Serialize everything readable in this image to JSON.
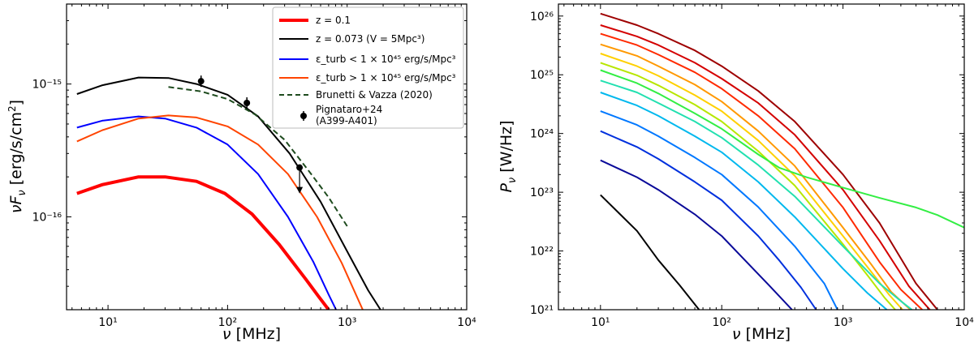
{
  "chart_data": [
    {
      "type": "line",
      "xlabel": "ν [MHz]",
      "ylabel": "νF_ν [erg/s/cm²]",
      "xscale": "log",
      "yscale": "log",
      "xlim": [
        4.5,
        10000
      ],
      "ylim": [
        2e-17,
        4e-15
      ],
      "x_ticks": [
        10,
        100,
        1000,
        10000
      ],
      "x_tick_labels": [
        "10¹",
        "10²",
        "10³",
        "10⁴"
      ],
      "y_ticks": [
        1e-16,
        1e-15
      ],
      "y_tick_labels": [
        "10⁻¹⁶",
        "10⁻¹⁵"
      ],
      "grid": false,
      "legend_position": "top-right",
      "series": [
        {
          "name": "z = 0.1",
          "color": "#ff0000",
          "width": 4,
          "dash": "solid",
          "x": [
            5.5,
            9,
            18,
            30,
            55,
            95,
            160,
            270,
            450,
            580,
            700
          ],
          "y": [
            1.5e-16,
            1.75e-16,
            2e-16,
            2e-16,
            1.85e-16,
            1.5e-16,
            1.05e-16,
            6.2e-17,
            3.4e-17,
            2.5e-17,
            2e-17
          ]
        },
        {
          "name": "z = 0.073 (V = 5Mpc³)",
          "color": "#000000",
          "width": 2,
          "dash": "solid",
          "x": [
            5.5,
            9,
            18,
            32,
            55,
            100,
            180,
            330,
            600,
            1000,
            1500,
            1900
          ],
          "y": [
            8.4e-16,
            9.8e-16,
            1.12e-15,
            1.11e-15,
            1e-15,
            8.3e-16,
            5.7e-16,
            3e-16,
            1.3e-16,
            5.5e-17,
            2.8e-17,
            2e-17
          ]
        },
        {
          "name": "ε_turb < 1 × 10⁴⁵ erg/s/Mpc³",
          "color": "#0000ff",
          "width": 2,
          "dash": "solid",
          "x": [
            5.5,
            9,
            18,
            30,
            55,
            100,
            180,
            320,
            520,
            700,
            830
          ],
          "y": [
            4.7e-16,
            5.3e-16,
            5.7e-16,
            5.5e-16,
            4.7e-16,
            3.5e-16,
            2.1e-16,
            1e-16,
            4.6e-17,
            2.6e-17,
            1.9e-17
          ]
        },
        {
          "name": "ε_turb > 1 × 10⁴⁵ erg/s/Mpc³",
          "color": "#ff4400",
          "width": 2,
          "dash": "solid",
          "x": [
            5.5,
            9,
            18,
            32,
            55,
            100,
            180,
            320,
            560,
            900,
            1350
          ],
          "y": [
            3.7e-16,
            4.5e-16,
            5.5e-16,
            5.8e-16,
            5.6e-16,
            4.8e-16,
            3.5e-16,
            2.1e-16,
            1e-16,
            4.5e-17,
            2e-17
          ]
        },
        {
          "name": "Brunetti & Vazza (2020)",
          "color": "#1e4b1e",
          "width": 2,
          "dash": "dashed",
          "x": [
            32,
            60,
            100,
            170,
            300,
            500,
            700,
            1000
          ],
          "y": [
            9.5e-16,
            8.8e-16,
            7.7e-16,
            5.9e-16,
            3.8e-16,
            2.1e-16,
            1.4e-16,
            8.5e-17
          ]
        }
      ],
      "points": {
        "name": "Pignataro+24 (A399-A401)",
        "color": "#000000",
        "x": [
          60,
          145,
          400
        ],
        "y": [
          1.05e-15,
          7.2e-16,
          2.35e-16
        ],
        "upper_limit": [
          false,
          false,
          true
        ]
      }
    },
    {
      "type": "line",
      "xlabel": "ν [MHz]",
      "ylabel": "P_ν [W/Hz]",
      "xscale": "log",
      "yscale": "log",
      "xlim": [
        4.5,
        10000
      ],
      "ylim": [
        1e+21,
        1.6e+26
      ],
      "x_ticks": [
        10,
        100,
        1000,
        10000
      ],
      "x_tick_labels": [
        "10¹",
        "10²",
        "10³",
        "10⁴"
      ],
      "y_ticks": [
        1e+21,
        1e+22,
        1e+23,
        1e+24,
        1e+25,
        1e+26
      ],
      "y_tick_labels": [
        "10²¹",
        "10²²",
        "10²³",
        "10²⁴",
        "10²⁵",
        "10²⁶"
      ],
      "grid": false,
      "series": [
        {
          "color": "#9e0000",
          "x": [
            10,
            20,
            30,
            60,
            100,
            200,
            400,
            1000,
            2000,
            4000,
            6000
          ],
          "y": [
            1.1e+26,
            7e+25,
            5e+25,
            2.6e+25,
            1.4e+25,
            5.3e+24,
            1.6e+24,
            2e+23,
            3e+22,
            2.8e+21,
            1e+21
          ]
        },
        {
          "color": "#d40000",
          "x": [
            10,
            20,
            30,
            60,
            100,
            200,
            400,
            1000,
            2000,
            3500,
            5200
          ],
          "y": [
            7e+25,
            4.5e+25,
            3.2e+25,
            1.6e+25,
            8.6e+24,
            3.3e+24,
            9.5e+23,
            1.1e+23,
            1.5e+22,
            2.5e+21,
            1e+21
          ]
        },
        {
          "color": "#ff2a00",
          "x": [
            10,
            20,
            30,
            60,
            100,
            200,
            400,
            1000,
            2000,
            3000,
            4500
          ],
          "y": [
            5e+25,
            3.2e+25,
            2.2e+25,
            1.1e+25,
            5.8e+24,
            2e+24,
            5.5e+23,
            5.5e+22,
            6.5e+21,
            2.2e+21,
            1e+21
          ]
        },
        {
          "color": "#ff9900",
          "x": [
            10,
            20,
            30,
            60,
            100,
            200,
            400,
            1000,
            1700,
            2500,
            3600
          ],
          "y": [
            3.3e+25,
            2.1e+25,
            1.4e+25,
            6.8e+24,
            3.5e+24,
            1.1e+24,
            2.8e+23,
            2.5e+22,
            6e+21,
            2e+21,
            1e+21
          ]
        },
        {
          "color": "#ffd000",
          "x": [
            10,
            20,
            30,
            60,
            100,
            200,
            400,
            1000,
            1700,
            2400,
            3100
          ],
          "y": [
            2.3e+25,
            1.4e+25,
            9.6e+24,
            4.5e+24,
            2.4e+24,
            7.6e+23,
            1.9e+23,
            1.8e+22,
            4.5e+21,
            1.8e+21,
            1e+21
          ]
        },
        {
          "color": "#b8e600",
          "x": [
            10,
            20,
            30,
            60,
            100,
            200,
            400,
            1000,
            1600,
            2200,
            2700
          ],
          "y": [
            1.6e+25,
            9.8e+24,
            6.6e+24,
            3.1e+24,
            1.6e+24,
            5e+23,
            1.3e+23,
            1.3e+22,
            3.8e+21,
            1.6e+21,
            1e+21
          ]
        },
        {
          "color": "#33ee44",
          "x": [
            10,
            20,
            30,
            60,
            100,
            200,
            300,
            500,
            1000,
            2000,
            4000,
            6000,
            10000
          ],
          "y": [
            1.2e+25,
            7.2e+24,
            4.8e+24,
            2.2e+24,
            1.2e+24,
            4.4e+23,
            2.6e+23,
            1.8e+23,
            1.2e+23,
            8e+22,
            5.5e+22,
            4.1e+22,
            2.5e+22
          ]
        },
        {
          "color": "#22e0b0",
          "x": [
            10,
            20,
            30,
            60,
            100,
            200,
            400,
            1000,
            2000,
            3000,
            3700
          ],
          "y": [
            8e+24,
            5e+24,
            3.3e+24,
            1.6e+24,
            8.5e+23,
            2.9e+23,
            8.5e+22,
            1.2e+22,
            2.8e+21,
            1.4e+21,
            1e+21
          ]
        },
        {
          "color": "#00b8ee",
          "x": [
            10,
            20,
            30,
            60,
            100,
            200,
            400,
            1000,
            1600,
            2300
          ],
          "y": [
            5e+24,
            3e+24,
            2e+24,
            9e+23,
            4.8e+23,
            1.5e+23,
            3.8e+22,
            5e+21,
            1.9e+21,
            1e+21
          ]
        },
        {
          "color": "#0078ff",
          "x": [
            10,
            20,
            30,
            60,
            100,
            200,
            400,
            700,
            900
          ],
          "y": [
            2.4e+24,
            1.4e+24,
            9e+23,
            3.9e+23,
            2e+23,
            5.6e+22,
            1.2e+22,
            2.8e+21,
            1e+21
          ]
        },
        {
          "color": "#0030dd",
          "x": [
            10,
            20,
            30,
            60,
            100,
            200,
            300,
            450,
            600
          ],
          "y": [
            1.1e+24,
            5.9e+23,
            3.7e+23,
            1.5e+23,
            7.3e+22,
            1.8e+22,
            6.8e+21,
            2.4e+21,
            1e+21
          ]
        },
        {
          "color": "#0a0a99",
          "x": [
            10,
            20,
            30,
            60,
            100,
            150,
            250,
            380
          ],
          "y": [
            3.5e+23,
            1.8e+23,
            1.1e+23,
            4.2e+22,
            1.8e+22,
            7.5e+21,
            2.5e+21,
            1e+21
          ]
        },
        {
          "color": "#000000",
          "x": [
            10,
            20,
            30,
            45,
            65
          ],
          "y": [
            9e+22,
            2.2e+22,
            7e+21,
            2.6e+21,
            1e+21
          ]
        }
      ]
    }
  ],
  "legend_labels": {
    "z01": "z = 0.1",
    "z073": "z = 0.073 (V = 5Mpc³)",
    "eps_low": "ε_turb < 1 × 10⁴⁵ erg/s/Mpc³",
    "eps_high": "ε_turb > 1 × 10⁴⁵ erg/s/Mpc³",
    "brunetti": "Brunetti & Vazza (2020)",
    "pign_line1": "Pignataro+24",
    "pign_line2": "(A399-A401)"
  }
}
